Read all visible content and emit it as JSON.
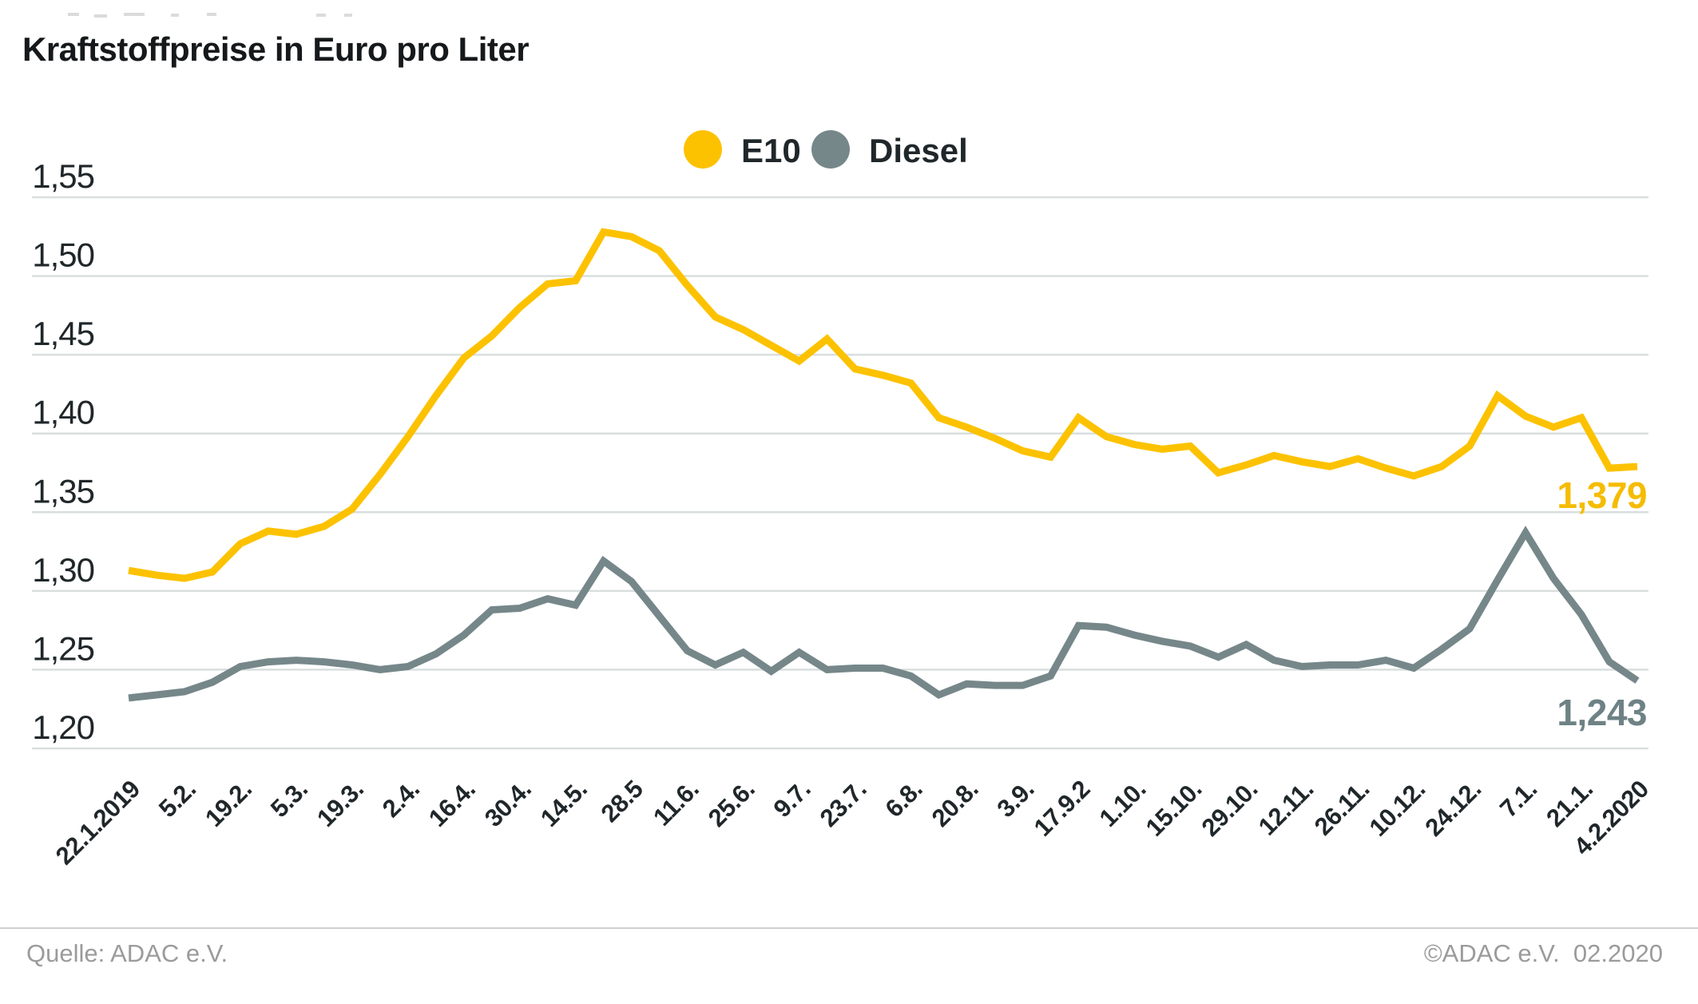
{
  "page": {
    "title": "Kraftstoffpreise in Euro pro Liter",
    "footer": {
      "source_left": "Quelle: ADAC e.V.",
      "source_right": "©ADAC e.V.  02.2020"
    }
  },
  "legend": {
    "e10_label": "E10",
    "diesel_label": "Diesel"
  },
  "colors": {
    "e10": "#FCC200",
    "diesel": "#76878A",
    "e10_value_label": "#F5BC00",
    "diesel_value_label": "#6E8285",
    "grid": "#D8DFDE",
    "axis_text": "#20272A"
  },
  "chart_data": {
    "type": "line",
    "title": "Kraftstoffpreise in Euro pro Liter",
    "ylabel": "Euro pro Liter",
    "ylim": [
      1.2,
      1.55
    ],
    "grid": true,
    "legend_position": "top-center",
    "y_ticks": [
      {
        "label": "1,55",
        "value": 1.55
      },
      {
        "label": "1,50",
        "value": 1.5
      },
      {
        "label": "1,45",
        "value": 1.45
      },
      {
        "label": "1,40",
        "value": 1.4
      },
      {
        "label": "1,35",
        "value": 1.35
      },
      {
        "label": "1,30",
        "value": 1.3
      },
      {
        "label": "1,25",
        "value": 1.25
      },
      {
        "label": "1,20",
        "value": 1.2
      }
    ],
    "x_tick_labels": [
      "22.1.2019",
      "5.2.",
      "19.2.",
      "5.3.",
      "19.3.",
      "2.4.",
      "16.4.",
      "30.4.",
      "14.5.",
      "28.5",
      "11.6.",
      "25.6.",
      "9.7.",
      "23.7.",
      "6.8.",
      "20.8.",
      "3.9.",
      "17.9.2",
      "1.10.",
      "15.10.",
      "29.10.",
      "12.11.",
      "26.11.",
      "10.12.",
      "24.12.",
      "7.1.",
      "21.1.",
      "4.2.2020"
    ],
    "x_tick_every": 2,
    "points_per_series": 55,
    "series": [
      {
        "name": "E10",
        "color": "#FCC200",
        "end_label": "1,379",
        "values": [
          1.313,
          1.31,
          1.308,
          1.312,
          1.33,
          1.338,
          1.336,
          1.341,
          1.352,
          1.374,
          1.398,
          1.424,
          1.448,
          1.462,
          1.48,
          1.495,
          1.497,
          1.528,
          1.525,
          1.516,
          1.494,
          1.474,
          1.466,
          1.456,
          1.446,
          1.46,
          1.441,
          1.437,
          1.432,
          1.41,
          1.404,
          1.397,
          1.389,
          1.385,
          1.41,
          1.398,
          1.393,
          1.39,
          1.392,
          1.375,
          1.38,
          1.386,
          1.382,
          1.379,
          1.384,
          1.378,
          1.373,
          1.379,
          1.392,
          1.424,
          1.411,
          1.404,
          1.41,
          1.378,
          1.379
        ]
      },
      {
        "name": "Diesel",
        "color": "#76878A",
        "end_label": "1,243",
        "values": [
          1.232,
          1.234,
          1.236,
          1.242,
          1.252,
          1.255,
          1.256,
          1.255,
          1.253,
          1.25,
          1.252,
          1.26,
          1.272,
          1.288,
          1.289,
          1.295,
          1.291,
          1.319,
          1.306,
          1.284,
          1.262,
          1.253,
          1.261,
          1.249,
          1.261,
          1.25,
          1.251,
          1.251,
          1.246,
          1.234,
          1.241,
          1.24,
          1.24,
          1.246,
          1.278,
          1.277,
          1.272,
          1.268,
          1.265,
          1.258,
          1.266,
          1.256,
          1.252,
          1.253,
          1.253,
          1.256,
          1.251,
          1.263,
          1.276,
          1.307,
          1.337,
          1.308,
          1.285,
          1.255,
          1.243
        ]
      }
    ]
  }
}
